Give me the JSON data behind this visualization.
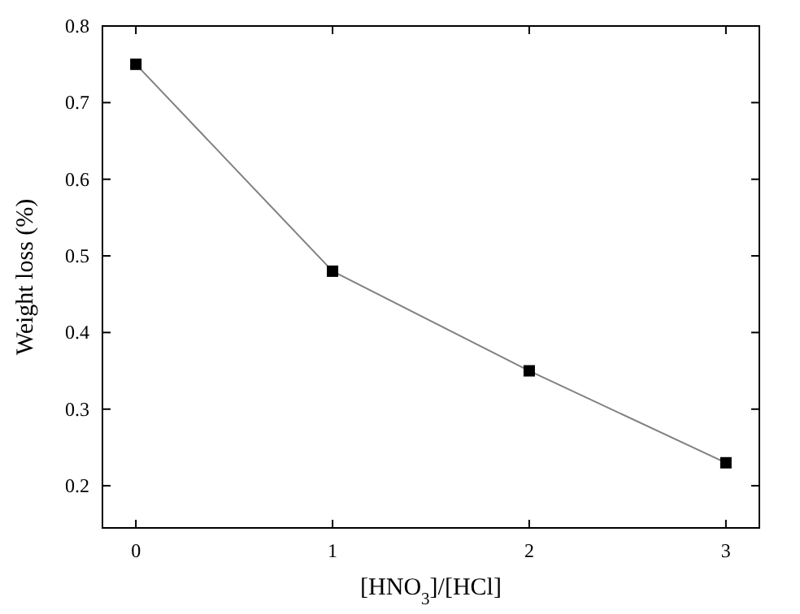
{
  "chart_data": {
    "type": "line",
    "xlabel": "[HNO$_{3}$]/[HCl]",
    "ylabel": "Weight loss (%)",
    "x": [
      0,
      1,
      2,
      3
    ],
    "series": [
      {
        "color": "#000000",
        "values": [
          0.75,
          0.48,
          0.35,
          0.23
        ]
      }
    ],
    "xlim": [
      -0.17,
      3.17
    ],
    "xticks": [
      0,
      1,
      2,
      3
    ],
    "ylim": [
      0.145,
      0.8
    ],
    "yticks": [
      0.2,
      0.3,
      0.4,
      0.5,
      0.6,
      0.7,
      0.8
    ],
    "marker": "square",
    "line_style": "solid"
  }
}
